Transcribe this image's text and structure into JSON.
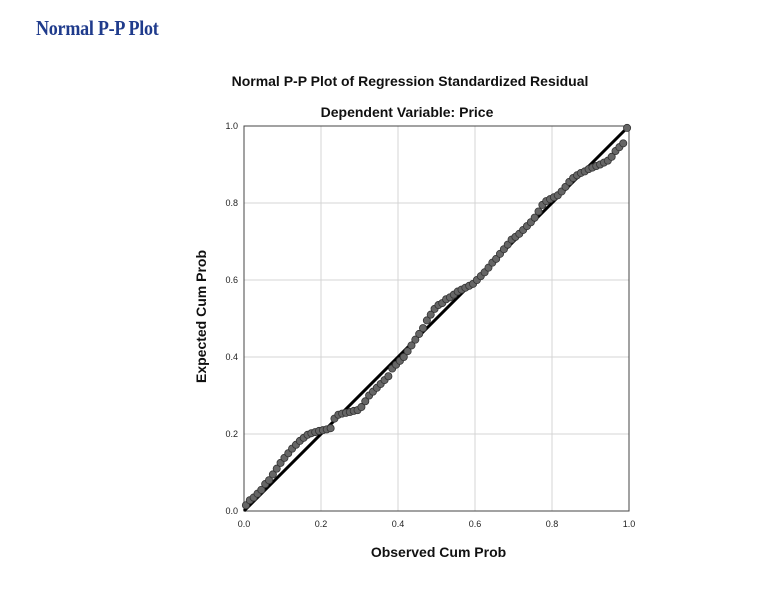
{
  "page": {
    "heading": "Normal P-P Plot"
  },
  "chart_data": {
    "type": "scatter",
    "title": "Normal P-P Plot of Regression Standardized Residual",
    "subtitle": "Dependent Variable: Price",
    "xlabel": "Observed Cum Prob",
    "ylabel": "Expected Cum Prob",
    "xlim": [
      0.0,
      1.0
    ],
    "ylim": [
      0.0,
      1.0
    ],
    "x_ticks": [
      0.0,
      0.2,
      0.4,
      0.6,
      0.8,
      1.0
    ],
    "y_ticks": [
      0.0,
      0.2,
      0.4,
      0.6,
      0.8,
      1.0
    ],
    "x_tick_labels": [
      "0.0",
      "0.2",
      "0.4",
      "0.6",
      "0.8",
      "1.0"
    ],
    "y_tick_labels": [
      "0.0",
      "0.2",
      "0.4",
      "0.6",
      "0.8",
      "1.0"
    ],
    "grid": true,
    "reference_line": {
      "x": [
        0.0,
        1.0
      ],
      "y": [
        0.0,
        1.0
      ]
    },
    "point_color": "#666666",
    "line_color": "#000000",
    "series": [
      {
        "x": [
          0.005,
          0.015,
          0.025,
          0.035,
          0.045,
          0.055,
          0.065,
          0.075,
          0.085,
          0.095,
          0.105,
          0.115,
          0.125,
          0.135,
          0.145,
          0.155,
          0.165,
          0.175,
          0.185,
          0.195,
          0.205,
          0.215,
          0.225,
          0.235,
          0.245,
          0.255,
          0.265,
          0.275,
          0.285,
          0.295,
          0.305,
          0.315,
          0.325,
          0.335,
          0.345,
          0.355,
          0.365,
          0.375,
          0.385,
          0.395,
          0.405,
          0.415,
          0.425,
          0.435,
          0.445,
          0.455,
          0.465,
          0.475,
          0.485,
          0.495,
          0.505,
          0.515,
          0.525,
          0.535,
          0.545,
          0.555,
          0.565,
          0.575,
          0.585,
          0.595,
          0.605,
          0.615,
          0.625,
          0.635,
          0.645,
          0.655,
          0.665,
          0.675,
          0.685,
          0.695,
          0.705,
          0.715,
          0.725,
          0.735,
          0.745,
          0.755,
          0.765,
          0.775,
          0.785,
          0.795,
          0.805,
          0.815,
          0.825,
          0.835,
          0.845,
          0.855,
          0.865,
          0.875,
          0.885,
          0.895,
          0.905,
          0.915,
          0.925,
          0.935,
          0.945,
          0.955,
          0.965,
          0.975,
          0.985,
          0.995
        ],
        "y": [
          0.015,
          0.028,
          0.035,
          0.045,
          0.055,
          0.07,
          0.08,
          0.095,
          0.11,
          0.125,
          0.138,
          0.15,
          0.162,
          0.172,
          0.182,
          0.19,
          0.198,
          0.202,
          0.205,
          0.208,
          0.21,
          0.212,
          0.215,
          0.24,
          0.25,
          0.253,
          0.255,
          0.257,
          0.26,
          0.262,
          0.27,
          0.285,
          0.3,
          0.31,
          0.32,
          0.33,
          0.34,
          0.35,
          0.37,
          0.38,
          0.39,
          0.4,
          0.415,
          0.43,
          0.445,
          0.46,
          0.475,
          0.495,
          0.51,
          0.525,
          0.535,
          0.54,
          0.55,
          0.555,
          0.562,
          0.57,
          0.575,
          0.58,
          0.585,
          0.59,
          0.6,
          0.61,
          0.62,
          0.632,
          0.645,
          0.655,
          0.668,
          0.68,
          0.692,
          0.705,
          0.712,
          0.72,
          0.73,
          0.74,
          0.75,
          0.762,
          0.778,
          0.795,
          0.805,
          0.81,
          0.815,
          0.82,
          0.83,
          0.842,
          0.855,
          0.865,
          0.872,
          0.878,
          0.882,
          0.888,
          0.892,
          0.896,
          0.9,
          0.905,
          0.91,
          0.92,
          0.935,
          0.945,
          0.955,
          0.995
        ]
      }
    ]
  }
}
